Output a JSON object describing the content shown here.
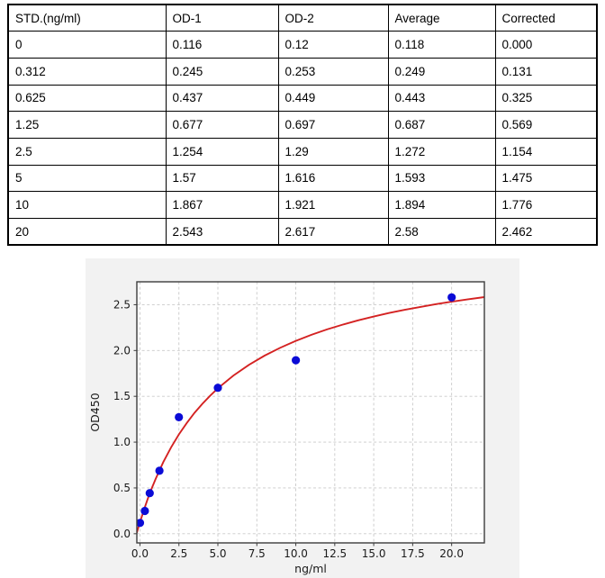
{
  "table": {
    "columns": [
      "STD.(ng/ml)",
      "OD-1",
      "OD-2",
      "Average",
      "Corrected"
    ],
    "rows": [
      [
        "0",
        "0.116",
        "0.12",
        "0.118",
        "0.000"
      ],
      [
        "0.312",
        "0.245",
        "0.253",
        "0.249",
        "0.131"
      ],
      [
        "0.625",
        "0.437",
        "0.449",
        "0.443",
        "0.325"
      ],
      [
        "1.25",
        "0.677",
        "0.697",
        "0.687",
        "0.569"
      ],
      [
        "2.5",
        "1.254",
        "1.29",
        "1.272",
        "1.154"
      ],
      [
        "5",
        "1.57",
        "1.616",
        "1.593",
        "1.475"
      ],
      [
        "10",
        "1.867",
        "1.921",
        "1.894",
        "1.776"
      ],
      [
        "20",
        "2.543",
        "2.617",
        "2.58",
        "2.462"
      ]
    ]
  },
  "chart_data": {
    "type": "scatter",
    "title": "",
    "xlabel": "ng/ml",
    "ylabel": "OD450",
    "xlim": [
      -0.2,
      22.1
    ],
    "ylim": [
      -0.1,
      2.75
    ],
    "x_ticks": [
      0.0,
      2.5,
      5.0,
      7.5,
      10.0,
      12.5,
      15.0,
      17.5,
      20.0
    ],
    "x_tick_labels": [
      "0.0",
      "2.5",
      "5.0",
      "7.5",
      "10.0",
      "12.5",
      "15.0",
      "17.5",
      "20.0"
    ],
    "y_ticks": [
      0.0,
      0.5,
      1.0,
      1.5,
      2.0,
      2.5
    ],
    "y_tick_labels": [
      "0.0",
      "0.5",
      "1.0",
      "1.5",
      "2.0",
      "2.5"
    ],
    "grid": "dashed",
    "legend": "none",
    "points": [
      [
        0,
        0.118
      ],
      [
        0.312,
        0.249
      ],
      [
        0.625,
        0.443
      ],
      [
        1.25,
        0.687
      ],
      [
        2.5,
        1.272
      ],
      [
        5,
        1.593
      ],
      [
        10,
        1.894
      ],
      [
        20,
        2.58
      ]
    ],
    "fit_curve": [
      [
        -0.2,
        0.01
      ],
      [
        -0.1,
        0.07
      ],
      [
        0,
        0.125
      ],
      [
        0.25,
        0.258
      ],
      [
        0.5,
        0.381
      ],
      [
        0.75,
        0.493
      ],
      [
        1,
        0.597
      ],
      [
        1.5,
        0.783
      ],
      [
        2,
        0.944
      ],
      [
        2.5,
        1.084
      ],
      [
        3,
        1.208
      ],
      [
        3.5,
        1.319
      ],
      [
        4,
        1.417
      ],
      [
        4.5,
        1.506
      ],
      [
        5,
        1.587
      ],
      [
        6,
        1.727
      ],
      [
        7,
        1.844
      ],
      [
        8,
        1.944
      ],
      [
        9,
        2.03
      ],
      [
        10,
        2.105
      ],
      [
        11,
        2.171
      ],
      [
        12,
        2.23
      ],
      [
        13,
        2.282
      ],
      [
        14,
        2.329
      ],
      [
        15,
        2.371
      ],
      [
        16,
        2.41
      ],
      [
        17,
        2.444
      ],
      [
        18,
        2.476
      ],
      [
        19,
        2.506
      ],
      [
        20,
        2.533
      ],
      [
        21,
        2.557
      ],
      [
        22.1,
        2.583
      ]
    ],
    "colors": {
      "points": "#0b0bd6",
      "curve": "#d42222",
      "panel_bg": "#f2f2f2",
      "plot_bg": "#ffffff",
      "grid": "#c9c9c9",
      "spine": "#3c3c3c",
      "text": "#1a1a1a"
    }
  }
}
